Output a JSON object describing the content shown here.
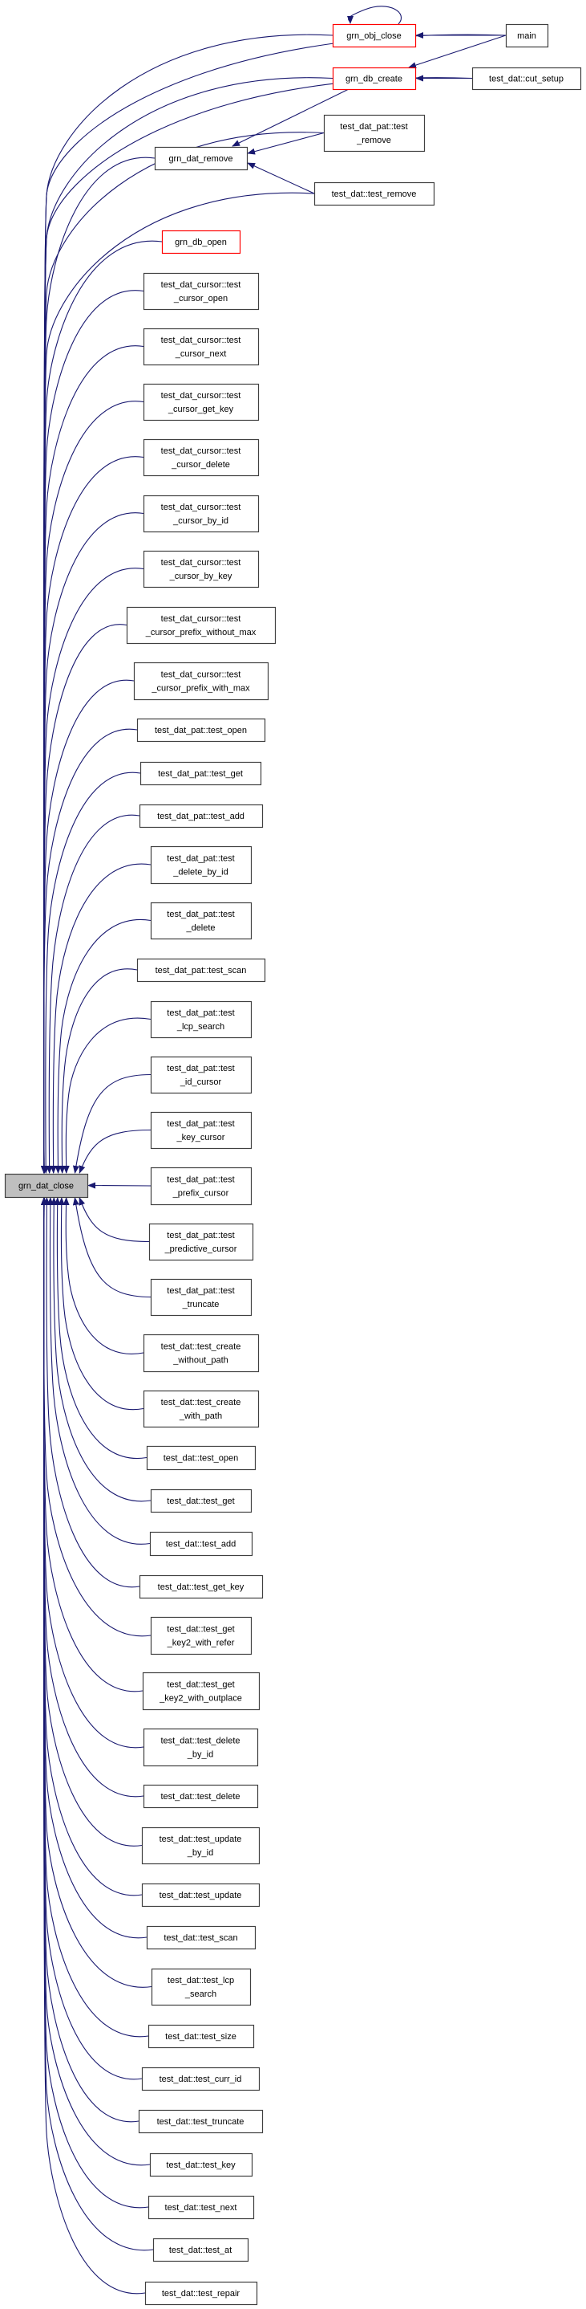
{
  "colors": {
    "edge": "#191970",
    "highlight_border": "#ff0000",
    "focus_fill": "#bfbfbf",
    "border": "#404040"
  },
  "nodes": [
    {
      "id": "grn_dat_close",
      "lines": [
        "grn_dat_close"
      ],
      "style": "focus"
    },
    {
      "id": "grn_obj_close",
      "lines": [
        "grn_obj_close"
      ],
      "style": "red"
    },
    {
      "id": "main",
      "lines": [
        "main"
      ],
      "style": "normal"
    },
    {
      "id": "grn_db_create",
      "lines": [
        "grn_db_create"
      ],
      "style": "red"
    },
    {
      "id": "cut_setup",
      "lines": [
        "test_dat::cut_setup"
      ],
      "style": "normal"
    },
    {
      "id": "tdp_test_remove",
      "lines": [
        "test_dat_pat::test",
        "_remove"
      ],
      "style": "normal"
    },
    {
      "id": "grn_dat_remove",
      "lines": [
        "grn_dat_remove"
      ],
      "style": "normal"
    },
    {
      "id": "td_test_remove",
      "lines": [
        "test_dat::test_remove"
      ],
      "style": "normal"
    },
    {
      "id": "grn_db_open",
      "lines": [
        "grn_db_open"
      ],
      "style": "red"
    },
    {
      "id": "c1",
      "lines": [
        "test_dat_cursor::test",
        "_cursor_open"
      ],
      "style": "normal"
    },
    {
      "id": "c2",
      "lines": [
        "test_dat_cursor::test",
        "_cursor_next"
      ],
      "style": "normal"
    },
    {
      "id": "c3",
      "lines": [
        "test_dat_cursor::test",
        "_cursor_get_key"
      ],
      "style": "normal"
    },
    {
      "id": "c4",
      "lines": [
        "test_dat_cursor::test",
        "_cursor_delete"
      ],
      "style": "normal"
    },
    {
      "id": "c5",
      "lines": [
        "test_dat_cursor::test",
        "_cursor_by_id"
      ],
      "style": "normal"
    },
    {
      "id": "c6",
      "lines": [
        "test_dat_cursor::test",
        "_cursor_by_key"
      ],
      "style": "normal"
    },
    {
      "id": "c7",
      "lines": [
        "test_dat_cursor::test",
        "_cursor_prefix_without_max"
      ],
      "style": "normal"
    },
    {
      "id": "c8",
      "lines": [
        "test_dat_cursor::test",
        "_cursor_prefix_with_max"
      ],
      "style": "normal"
    },
    {
      "id": "p1",
      "lines": [
        "test_dat_pat::test_open"
      ],
      "style": "normal"
    },
    {
      "id": "p2",
      "lines": [
        "test_dat_pat::test_get"
      ],
      "style": "normal"
    },
    {
      "id": "p3",
      "lines": [
        "test_dat_pat::test_add"
      ],
      "style": "normal"
    },
    {
      "id": "p4",
      "lines": [
        "test_dat_pat::test",
        "_delete_by_id"
      ],
      "style": "normal"
    },
    {
      "id": "p5",
      "lines": [
        "test_dat_pat::test",
        "_delete"
      ],
      "style": "normal"
    },
    {
      "id": "p6",
      "lines": [
        "test_dat_pat::test_scan"
      ],
      "style": "normal"
    },
    {
      "id": "p7",
      "lines": [
        "test_dat_pat::test",
        "_lcp_search"
      ],
      "style": "normal"
    },
    {
      "id": "p8",
      "lines": [
        "test_dat_pat::test",
        "_id_cursor"
      ],
      "style": "normal"
    },
    {
      "id": "p9",
      "lines": [
        "test_dat_pat::test",
        "_key_cursor"
      ],
      "style": "normal"
    },
    {
      "id": "p10",
      "lines": [
        "test_dat_pat::test",
        "_prefix_cursor"
      ],
      "style": "normal"
    },
    {
      "id": "p11",
      "lines": [
        "test_dat_pat::test",
        "_predictive_cursor"
      ],
      "style": "normal"
    },
    {
      "id": "p12",
      "lines": [
        "test_dat_pat::test",
        "_truncate"
      ],
      "style": "normal"
    },
    {
      "id": "d1",
      "lines": [
        "test_dat::test_create",
        "_without_path"
      ],
      "style": "normal"
    },
    {
      "id": "d2",
      "lines": [
        "test_dat::test_create",
        "_with_path"
      ],
      "style": "normal"
    },
    {
      "id": "d3",
      "lines": [
        "test_dat::test_open"
      ],
      "style": "normal"
    },
    {
      "id": "d4",
      "lines": [
        "test_dat::test_get"
      ],
      "style": "normal"
    },
    {
      "id": "d5",
      "lines": [
        "test_dat::test_add"
      ],
      "style": "normal"
    },
    {
      "id": "d6",
      "lines": [
        "test_dat::test_get_key"
      ],
      "style": "normal"
    },
    {
      "id": "d7",
      "lines": [
        "test_dat::test_get",
        "_key2_with_refer"
      ],
      "style": "normal"
    },
    {
      "id": "d8",
      "lines": [
        "test_dat::test_get",
        "_key2_with_outplace"
      ],
      "style": "normal"
    },
    {
      "id": "d9",
      "lines": [
        "test_dat::test_delete",
        "_by_id"
      ],
      "style": "normal"
    },
    {
      "id": "d10",
      "lines": [
        "test_dat::test_delete"
      ],
      "style": "normal"
    },
    {
      "id": "d11",
      "lines": [
        "test_dat::test_update",
        "_by_id"
      ],
      "style": "normal"
    },
    {
      "id": "d12",
      "lines": [
        "test_dat::test_update"
      ],
      "style": "normal"
    },
    {
      "id": "d13",
      "lines": [
        "test_dat::test_scan"
      ],
      "style": "normal"
    },
    {
      "id": "d14",
      "lines": [
        "test_dat::test_lcp",
        "_search"
      ],
      "style": "normal"
    },
    {
      "id": "d15",
      "lines": [
        "test_dat::test_size"
      ],
      "style": "normal"
    },
    {
      "id": "d16",
      "lines": [
        "test_dat::test_curr_id"
      ],
      "style": "normal"
    },
    {
      "id": "d17",
      "lines": [
        "test_dat::test_truncate"
      ],
      "style": "normal"
    },
    {
      "id": "d18",
      "lines": [
        "test_dat::test_key"
      ],
      "style": "normal"
    },
    {
      "id": "d19",
      "lines": [
        "test_dat::test_next"
      ],
      "style": "normal"
    },
    {
      "id": "d20",
      "lines": [
        "test_dat::test_at"
      ],
      "style": "normal"
    },
    {
      "id": "d21",
      "lines": [
        "test_dat::test_repair"
      ],
      "style": "normal"
    }
  ],
  "extra_edges": [
    {
      "from": "main",
      "to": "grn_obj_close"
    },
    {
      "from": "main",
      "to": "grn_db_create"
    },
    {
      "from": "cut_setup",
      "to": "grn_db_create"
    },
    {
      "from": "grn_db_create",
      "to": "grn_dat_remove"
    },
    {
      "from": "tdp_test_remove",
      "to": "grn_dat_remove"
    },
    {
      "from": "td_test_remove",
      "to": "grn_dat_remove"
    },
    {
      "from": "grn_obj_close",
      "to": "grn_obj_close"
    }
  ],
  "focus_node": "grn_dat_close"
}
